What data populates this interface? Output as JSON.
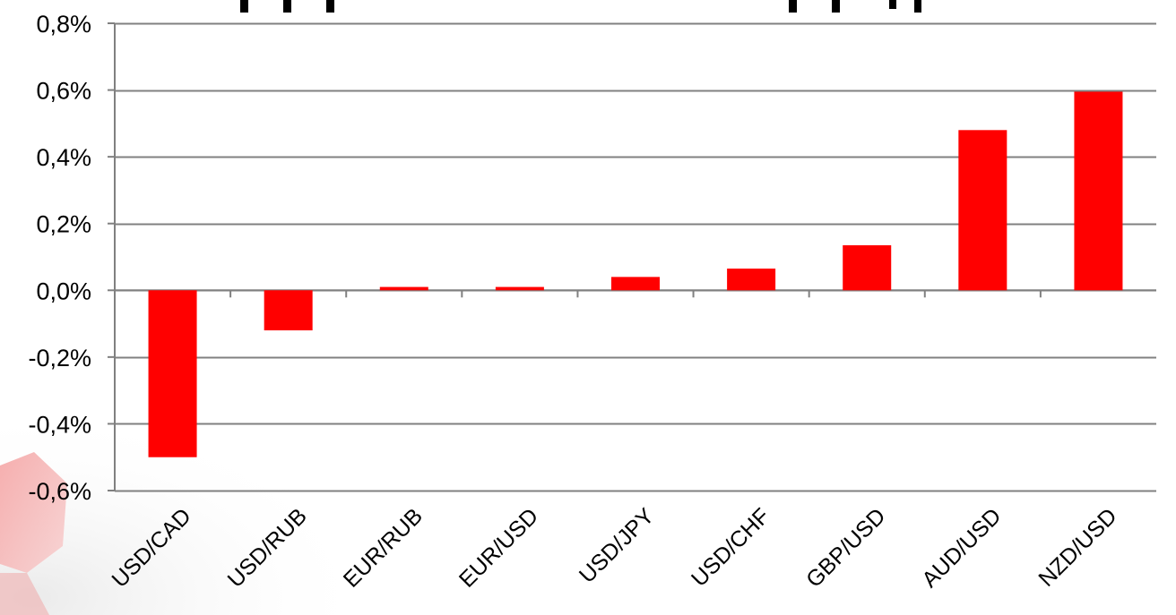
{
  "chart_data": {
    "type": "bar",
    "title": "",
    "xlabel": "",
    "ylabel": "",
    "categories": [
      "USD/CAD",
      "USD/RUB",
      "EUR/RUB",
      "EUR/USD",
      "USD/JPY",
      "USD/CHF",
      "GBP/USD",
      "AUD/USD",
      "NZD/USD"
    ],
    "values": [
      -0.5,
      -0.12,
      0.01,
      0.01,
      0.04,
      0.065,
      0.135,
      0.48,
      0.595
    ],
    "ylim": [
      -0.6,
      0.8
    ],
    "yticks": [
      0.8,
      0.6,
      0.4,
      0.2,
      0.0,
      -0.2,
      -0.4,
      -0.6
    ],
    "ytick_labels": [
      "0,8%",
      "0,6%",
      "0,4%",
      "0,2%",
      "0,0%",
      "-0,2%",
      "-0,4%",
      "-0,6%"
    ],
    "grid": true,
    "legend": "none",
    "bar_color": "#ff0000",
    "grid_color": "#808080"
  }
}
